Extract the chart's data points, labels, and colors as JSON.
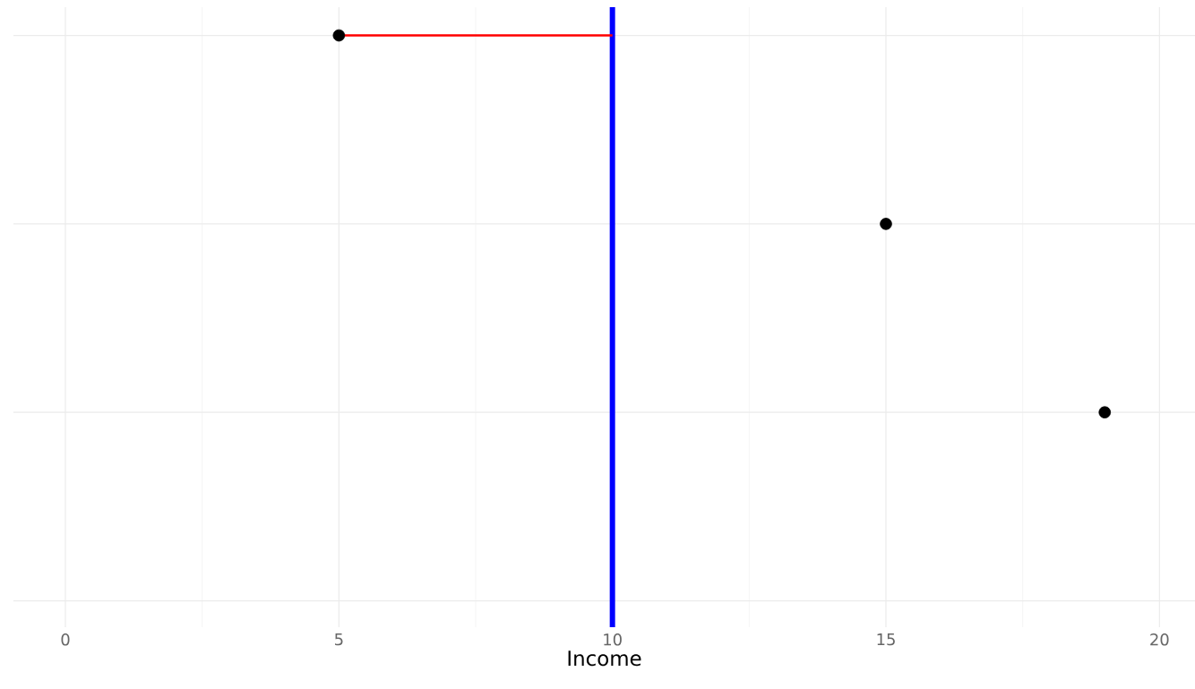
{
  "chart_data": {
    "type": "scatter",
    "orientation": "horizontal",
    "xlabel": "Income",
    "categories": [
      null,
      null,
      null,
      null
    ],
    "series": [
      {
        "type": "bar",
        "color": "#ff0000",
        "base": [
          5,
          null,
          null,
          null
        ],
        "values": [
          5,
          null,
          null,
          null
        ]
      },
      {
        "color": "#000000",
        "values": [
          5,
          15,
          19,
          null
        ],
        "marker": "circle"
      }
    ],
    "xlim": [
      -0.95,
      20.65
    ],
    "xticks": [
      0,
      5,
      10,
      15,
      20
    ],
    "grid": true,
    "ref_lines": [
      {
        "axis": "x",
        "value": 10,
        "color": "#0000ff"
      }
    ]
  }
}
